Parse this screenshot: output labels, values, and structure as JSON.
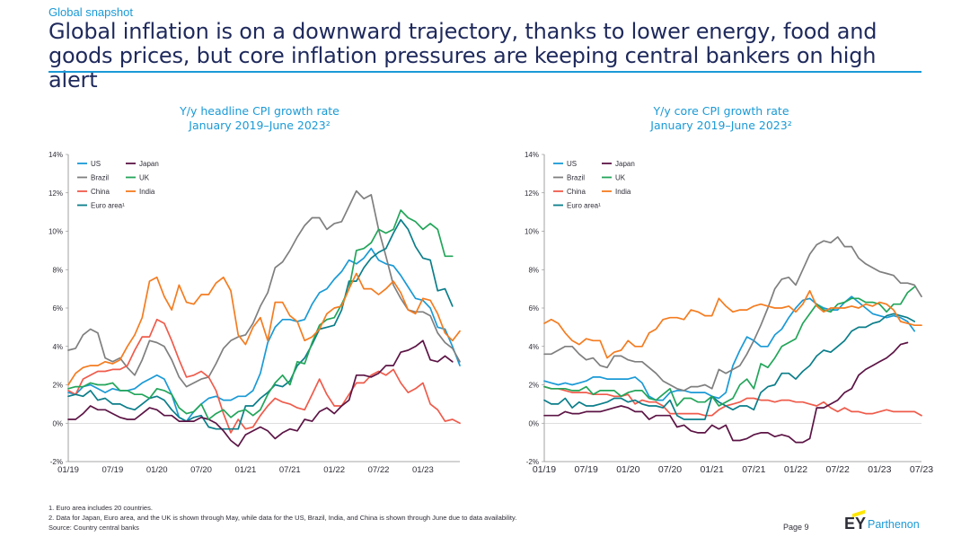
{
  "header": {
    "section_label": "Global snapshot",
    "headline": "Global inflation is on a downward trajectory, thanks to lower energy, food and goods prices, but core inflation pressures are keeping central bankers on high alert"
  },
  "colors": {
    "US": "#1a9ad6",
    "Brazil": "#7f7f7f",
    "China": "#ef5b4b",
    "Euro area": "#0b7e8a",
    "Japan": "#5c1445",
    "UK": "#23a55a",
    "India": "#f47c20"
  },
  "chart_data": [
    {
      "type": "line",
      "title": "Y/y headline CPI growth rate",
      "subtitle": "January 2019–June 2023²",
      "xlabel": "",
      "ylabel": "",
      "ylim": [
        -2,
        14
      ],
      "yticks": [
        "-2%",
        "0%",
        "2%",
        "4%",
        "6%",
        "8%",
        "10%",
        "12%",
        "14%"
      ],
      "xticks": [
        "01/19",
        "07/19",
        "01/20",
        "07/20",
        "01/21",
        "07/21",
        "01/22",
        "07/22",
        "01/23"
      ],
      "legend_position": "top-left",
      "series": [
        {
          "name": "US",
          "legend": "US",
          "values": [
            1.6,
            1.5,
            1.9,
            2.0,
            1.8,
            1.6,
            1.8,
            1.7,
            1.7,
            1.8,
            2.1,
            2.3,
            2.5,
            2.3,
            1.5,
            0.3,
            0.1,
            0.6,
            1.0,
            1.3,
            1.4,
            1.2,
            1.2,
            1.4,
            1.4,
            1.7,
            2.6,
            4.2,
            5.0,
            5.4,
            5.4,
            5.3,
            5.4,
            6.2,
            6.8,
            7.0,
            7.5,
            7.9,
            8.5,
            8.3,
            8.6,
            9.1,
            8.5,
            8.3,
            8.2,
            7.7,
            7.1,
            6.5,
            6.4,
            6.0,
            5.0,
            4.9,
            4.0,
            3.0
          ]
        },
        {
          "name": "Brazil",
          "legend": "Brazil",
          "values": [
            3.8,
            3.9,
            4.6,
            4.9,
            4.7,
            3.4,
            3.2,
            3.4,
            2.9,
            2.5,
            3.3,
            4.3,
            4.2,
            4.0,
            3.3,
            2.4,
            1.9,
            2.1,
            2.3,
            2.4,
            3.1,
            3.9,
            4.3,
            4.5,
            4.6,
            5.2,
            6.1,
            6.8,
            8.1,
            8.4,
            9.0,
            9.7,
            10.3,
            10.7,
            10.7,
            10.1,
            10.4,
            10.5,
            11.3,
            12.1,
            11.7,
            11.9,
            10.1,
            8.7,
            7.2,
            6.5,
            5.9,
            5.8,
            5.8,
            5.6,
            4.7,
            4.2,
            3.9,
            3.2
          ]
        },
        {
          "name": "China",
          "legend": "China",
          "values": [
            1.7,
            1.5,
            2.3,
            2.5,
            2.7,
            2.7,
            2.8,
            2.8,
            3.0,
            3.8,
            4.5,
            4.5,
            5.4,
            5.2,
            4.3,
            3.3,
            2.4,
            2.5,
            2.7,
            2.4,
            1.7,
            0.5,
            -0.5,
            0.2,
            -0.3,
            -0.2,
            0.4,
            0.9,
            1.3,
            1.1,
            1.0,
            0.8,
            0.7,
            1.5,
            2.3,
            1.5,
            0.9,
            0.9,
            1.5,
            2.1,
            2.1,
            2.5,
            2.7,
            2.5,
            2.8,
            2.1,
            1.6,
            1.8,
            2.1,
            1.0,
            0.7,
            0.1,
            0.2,
            0.0
          ]
        },
        {
          "name": "Euro area",
          "legend": "Euro area¹",
          "values": [
            1.4,
            1.5,
            1.4,
            1.7,
            1.2,
            1.3,
            1.0,
            1.0,
            0.8,
            0.7,
            1.0,
            1.3,
            1.4,
            1.2,
            0.7,
            0.3,
            0.1,
            0.3,
            0.4,
            -0.2,
            -0.3,
            -0.3,
            -0.3,
            -0.3,
            0.9,
            0.9,
            1.3,
            1.6,
            2.0,
            1.9,
            2.2,
            3.0,
            3.4,
            4.1,
            4.9,
            5.0,
            5.1,
            5.9,
            7.4,
            7.4,
            8.1,
            8.6,
            8.9,
            9.1,
            9.9,
            10.6,
            10.1,
            9.2,
            8.6,
            8.5,
            6.9,
            7.0,
            6.1
          ]
        },
        {
          "name": "Japan",
          "legend": "Japan",
          "values": [
            0.2,
            0.2,
            0.5,
            0.9,
            0.7,
            0.7,
            0.5,
            0.3,
            0.2,
            0.2,
            0.5,
            0.8,
            0.7,
            0.4,
            0.4,
            0.1,
            0.1,
            0.1,
            0.3,
            0.2,
            0.0,
            -0.4,
            -0.9,
            -1.2,
            -0.6,
            -0.4,
            -0.2,
            -0.4,
            -0.8,
            -0.5,
            -0.3,
            -0.4,
            0.2,
            0.1,
            0.6,
            0.8,
            0.5,
            0.9,
            1.2,
            2.5,
            2.5,
            2.4,
            2.6,
            3.0,
            3.0,
            3.7,
            3.8,
            4.0,
            4.3,
            3.3,
            3.2,
            3.5,
            3.2
          ]
        },
        {
          "name": "UK",
          "legend": "UK",
          "values": [
            1.8,
            1.9,
            1.9,
            2.1,
            2.0,
            2.0,
            2.1,
            1.7,
            1.7,
            1.5,
            1.5,
            1.3,
            1.8,
            1.7,
            1.5,
            0.8,
            0.5,
            0.6,
            1.0,
            0.2,
            0.5,
            0.7,
            0.3,
            0.6,
            0.7,
            0.4,
            0.7,
            1.5,
            2.1,
            2.5,
            2.0,
            3.2,
            3.1,
            4.2,
            5.1,
            5.4,
            5.5,
            6.2,
            7.0,
            9.0,
            9.1,
            9.4,
            10.1,
            9.9,
            10.1,
            11.1,
            10.7,
            10.5,
            10.1,
            10.4,
            10.1,
            8.7,
            8.7
          ]
        },
        {
          "name": "India",
          "legend": "India",
          "values": [
            2.0,
            2.6,
            2.9,
            3.0,
            3.0,
            3.2,
            3.1,
            3.3,
            4.0,
            4.6,
            5.5,
            7.4,
            7.6,
            6.6,
            5.9,
            7.2,
            6.3,
            6.2,
            6.7,
            6.7,
            7.3,
            7.6,
            6.9,
            4.6,
            4.1,
            5.0,
            5.5,
            4.3,
            6.3,
            6.3,
            5.6,
            5.3,
            4.3,
            4.5,
            4.9,
            5.7,
            6.0,
            6.1,
            7.0,
            7.8,
            7.0,
            7.0,
            6.7,
            7.0,
            7.4,
            6.8,
            5.9,
            5.7,
            6.5,
            6.4,
            5.7,
            4.7,
            4.3,
            4.8
          ]
        }
      ]
    },
    {
      "type": "line",
      "title": "Y/y core CPI growth rate",
      "subtitle": "January 2019–June 2023²",
      "xlabel": "",
      "ylabel": "",
      "ylim": [
        -2,
        14
      ],
      "yticks": [
        "-2%",
        "0%",
        "2%",
        "4%",
        "6%",
        "8%",
        "10%",
        "12%",
        "14%"
      ],
      "xticks": [
        "01/19",
        "07/19",
        "01/20",
        "07/20",
        "01/21",
        "07/21",
        "01/22",
        "07/22",
        "01/23",
        "07/23"
      ],
      "legend_position": "top-left",
      "series": [
        {
          "name": "US",
          "legend": "US",
          "values": [
            2.2,
            2.1,
            2.0,
            2.1,
            2.0,
            2.1,
            2.2,
            2.4,
            2.4,
            2.3,
            2.3,
            2.3,
            2.3,
            2.4,
            2.1,
            1.4,
            1.2,
            1.2,
            1.6,
            1.7,
            1.7,
            1.6,
            1.6,
            1.6,
            1.4,
            1.3,
            1.6,
            3.0,
            3.8,
            4.5,
            4.3,
            4.0,
            4.0,
            4.6,
            4.9,
            5.5,
            6.0,
            6.4,
            6.5,
            6.2,
            6.0,
            5.9,
            5.9,
            6.3,
            6.6,
            6.3,
            6.0,
            5.7,
            5.6,
            5.5,
            5.6,
            5.5,
            5.3,
            4.8
          ]
        },
        {
          "name": "Brazil",
          "legend": "Brazil",
          "values": [
            3.6,
            3.6,
            3.8,
            4.0,
            4.0,
            3.6,
            3.3,
            3.4,
            3.0,
            2.9,
            3.5,
            3.5,
            3.3,
            3.2,
            3.2,
            2.9,
            2.6,
            2.2,
            2.0,
            1.8,
            1.7,
            1.9,
            1.9,
            2.0,
            1.8,
            2.8,
            2.6,
            2.8,
            3.0,
            3.6,
            4.3,
            5.1,
            6.0,
            7.0,
            7.5,
            7.6,
            7.2,
            8.0,
            8.8,
            9.3,
            9.5,
            9.4,
            9.7,
            9.2,
            9.2,
            8.6,
            8.3,
            8.1,
            7.9,
            7.8,
            7.7,
            7.3,
            7.3,
            7.2,
            6.6
          ]
        },
        {
          "name": "China",
          "legend": "China",
          "values": [
            1.9,
            1.8,
            1.8,
            1.7,
            1.6,
            1.6,
            1.6,
            1.5,
            1.5,
            1.5,
            1.4,
            1.4,
            1.5,
            1.0,
            1.2,
            1.1,
            1.1,
            0.9,
            0.5,
            0.5,
            0.5,
            0.5,
            0.5,
            0.4,
            0.4,
            0.7,
            0.9,
            1.0,
            1.1,
            1.3,
            1.3,
            1.2,
            1.2,
            1.1,
            1.2,
            1.2,
            1.1,
            1.1,
            1.0,
            0.9,
            1.1,
            0.8,
            0.6,
            0.8,
            0.6,
            0.6,
            0.5,
            0.5,
            0.6,
            0.7,
            0.6,
            0.6,
            0.6,
            0.6,
            0.4
          ]
        },
        {
          "name": "Euro area",
          "legend": "Euro area¹",
          "values": [
            1.2,
            1.0,
            1.0,
            1.3,
            0.8,
            1.1,
            0.9,
            0.9,
            1.0,
            1.1,
            1.3,
            1.3,
            1.1,
            1.2,
            1.0,
            0.9,
            0.9,
            0.8,
            1.2,
            0.4,
            0.2,
            0.2,
            0.2,
            0.2,
            1.4,
            1.1,
            0.9,
            0.7,
            0.9,
            0.9,
            0.7,
            1.6,
            1.9,
            2.0,
            2.6,
            2.6,
            2.3,
            2.7,
            3.0,
            3.5,
            3.8,
            3.7,
            4.0,
            4.3,
            4.8,
            5.0,
            5.0,
            5.2,
            5.3,
            5.6,
            5.7,
            5.6,
            5.5,
            5.3
          ]
        },
        {
          "name": "Japan",
          "legend": "Japan",
          "values": [
            0.4,
            0.4,
            0.4,
            0.6,
            0.5,
            0.5,
            0.6,
            0.6,
            0.6,
            0.7,
            0.8,
            0.9,
            0.8,
            0.6,
            0.6,
            0.2,
            0.4,
            0.4,
            0.4,
            -0.2,
            -0.1,
            -0.4,
            -0.5,
            -0.5,
            -0.1,
            -0.3,
            -0.1,
            -0.9,
            -0.9,
            -0.8,
            -0.6,
            -0.5,
            -0.5,
            -0.7,
            -0.6,
            -0.7,
            -1.0,
            -1.0,
            -0.8,
            0.8,
            0.8,
            1.0,
            1.2,
            1.6,
            1.8,
            2.5,
            2.8,
            3.0,
            3.2,
            3.4,
            3.7,
            4.1,
            4.2
          ]
        },
        {
          "name": "UK",
          "legend": "UK",
          "values": [
            1.9,
            1.8,
            1.8,
            1.8,
            1.7,
            1.7,
            1.9,
            1.5,
            1.7,
            1.7,
            1.7,
            1.4,
            1.6,
            1.7,
            1.7,
            1.3,
            1.2,
            1.5,
            1.8,
            0.9,
            1.3,
            1.3,
            1.1,
            1.1,
            1.4,
            0.9,
            1.1,
            1.3,
            2.0,
            2.3,
            1.8,
            3.1,
            2.9,
            3.4,
            4.0,
            4.2,
            4.4,
            5.2,
            5.7,
            6.2,
            5.9,
            5.8,
            6.2,
            6.3,
            6.5,
            6.5,
            6.3,
            6.3,
            6.2,
            5.8,
            6.2,
            6.2,
            6.8,
            7.1
          ]
        },
        {
          "name": "India",
          "legend": "India",
          "values": [
            5.2,
            5.4,
            5.2,
            4.7,
            4.3,
            4.1,
            4.4,
            4.3,
            4.3,
            3.4,
            3.7,
            3.8,
            4.3,
            4.0,
            4.0,
            4.7,
            4.9,
            5.4,
            5.5,
            5.5,
            5.4,
            5.9,
            5.8,
            5.6,
            5.6,
            6.5,
            6.1,
            5.8,
            5.9,
            5.9,
            6.1,
            6.2,
            6.1,
            6.0,
            6.0,
            6.1,
            5.8,
            6.2,
            6.9,
            6.1,
            5.8,
            6.0,
            6.0,
            6.0,
            6.1,
            6.0,
            6.2,
            6.1,
            6.3,
            6.2,
            5.9,
            5.3,
            5.2,
            5.1,
            5.1
          ]
        }
      ]
    }
  ],
  "footnotes": {
    "note1": "1.   Euro area includes 20 countries.",
    "note2": "2.   Data for Japan, Euro area, and the UK is shown through May, while data for the US, Brazil, India, and China is shown through June due to data availability.",
    "source": "Source: Country central banks"
  },
  "page": {
    "number": "Page 9"
  },
  "logo": {
    "ey": "EY",
    "brand": "Parthenon"
  }
}
